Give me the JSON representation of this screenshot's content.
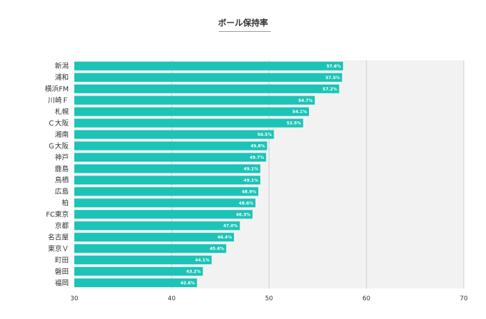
{
  "chart_data": {
    "type": "bar",
    "orientation": "horizontal",
    "title": "ボール保持率",
    "categories": [
      "新潟",
      "浦和",
      "横浜FM",
      "川崎Ｆ",
      "札幌",
      "Ｃ大阪",
      "湘南",
      "Ｇ大阪",
      "神戸",
      "鹿島",
      "鳥栖",
      "広島",
      "柏",
      "FC東京",
      "京都",
      "名古屋",
      "東京Ｖ",
      "町田",
      "磐田",
      "福岡"
    ],
    "values": [
      57.6,
      57.5,
      57.2,
      54.7,
      54.1,
      53.5,
      50.5,
      49.8,
      49.7,
      49.1,
      49.1,
      48.9,
      48.6,
      48.3,
      47.0,
      46.4,
      45.6,
      44.1,
      43.2,
      42.6
    ],
    "value_labels": [
      "57.6%",
      "57.5%",
      "57.2%",
      "54.7%",
      "54.1%",
      "53.5%",
      "50.5%",
      "49.8%",
      "49.7%",
      "49.1%",
      "49.1%",
      "48.9%",
      "48.6%",
      "48.3%",
      "47.0%",
      "46.4%",
      "45.6%",
      "44.1%",
      "43.2%",
      "42.6%"
    ],
    "xlim": [
      30,
      70
    ],
    "xticks": [
      "30",
      "40",
      "50",
      "60",
      "70"
    ],
    "xlabel": "",
    "ylabel": "",
    "grid": true,
    "legend": "none",
    "bar_color": "#1bc4b6",
    "plot_background": "#f2f2f2"
  }
}
